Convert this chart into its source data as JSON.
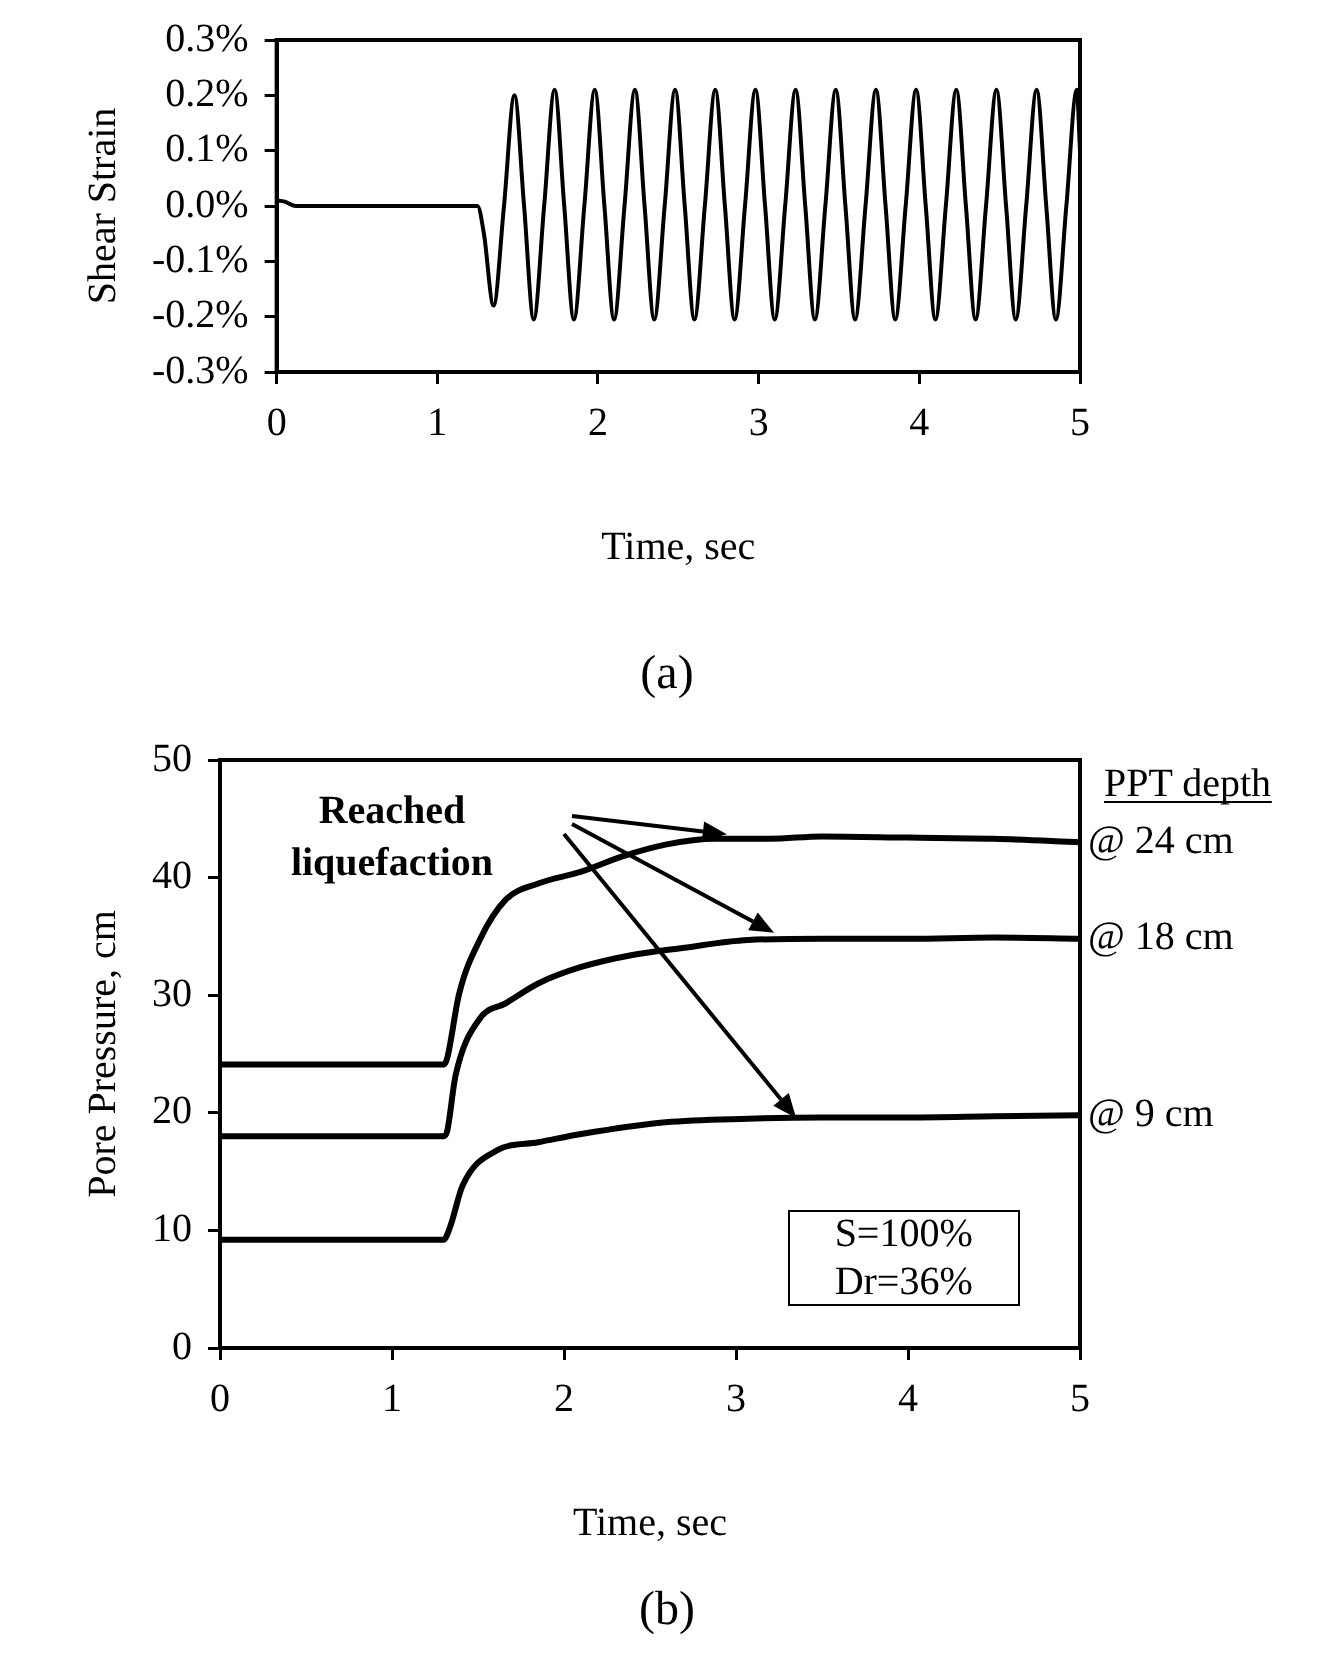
{
  "chart_data": [
    {
      "type": "line",
      "xlabel": "Time, sec",
      "ylabel": "Shear Strain",
      "annotations": [
        "(a)"
      ],
      "marker": "none",
      "line_style": "solid",
      "grid": false,
      "xlim": [
        0,
        5
      ],
      "xticks": [
        0,
        1,
        2,
        3,
        4,
        5
      ],
      "ylim": [
        -0.3,
        0.3
      ],
      "yticks": [
        {
          "value": -0.3,
          "label": "-0.3%"
        },
        {
          "value": -0.2,
          "label": "-0.2%"
        },
        {
          "value": -0.1,
          "label": "-0.1%"
        },
        {
          "value": 0,
          "label": "0.0%"
        },
        {
          "value": 0.1,
          "label": "0.1%"
        },
        {
          "value": 0.2,
          "label": "0.2%"
        },
        {
          "value": 0.3,
          "label": "0.3%"
        }
      ],
      "series": [
        {
          "color": "#000000",
          "x": [
            0,
            0.05,
            0.12,
            1.25,
            1.29,
            1.35,
            1.415,
            1.48,
            1.54,
            1.6,
            1.665,
            1.73,
            1.79,
            1.85,
            1.915,
            1.98,
            2.04,
            2.1,
            2.165,
            2.23,
            2.29,
            2.35,
            2.415,
            2.48,
            2.54,
            2.6,
            2.665,
            2.73,
            2.79,
            2.85,
            2.915,
            2.98,
            3.04,
            3.1,
            3.165,
            3.23,
            3.29,
            3.35,
            3.415,
            3.48,
            3.54,
            3.6,
            3.665,
            3.73,
            3.79,
            3.85,
            3.915,
            3.98,
            4.04,
            4.1,
            4.165,
            4.23,
            4.29,
            4.35,
            4.415,
            4.48,
            4.54,
            4.6,
            4.665,
            4.73,
            4.79,
            4.85,
            4.915,
            4.98,
            5.0
          ],
          "values": [
            0.01,
            0.008,
            0,
            0,
            -0.05,
            -0.18,
            0,
            0.2,
            0,
            -0.205,
            0,
            0.21,
            0,
            -0.205,
            0,
            0.21,
            0,
            -0.205,
            0,
            0.21,
            0,
            -0.205,
            0,
            0.21,
            0,
            -0.205,
            0,
            0.21,
            0,
            -0.205,
            0,
            0.21,
            0,
            -0.205,
            0,
            0.21,
            0,
            -0.205,
            0,
            0.21,
            0,
            -0.205,
            0,
            0.21,
            0,
            -0.205,
            0,
            0.21,
            0,
            -0.205,
            0,
            0.21,
            0,
            -0.205,
            0,
            0.21,
            0,
            -0.205,
            0,
            0.21,
            0,
            -0.205,
            0,
            0.21,
            0.1
          ]
        }
      ]
    },
    {
      "type": "line",
      "xlabel": "Time, sec",
      "ylabel": "Pore Pressure, cm",
      "legend_title": "PPT depth",
      "annotations": [
        "Reached liquefaction",
        "S=100%\nDr=36%",
        "(b)"
      ],
      "marker": "none",
      "line_style": "solid",
      "grid": false,
      "xlim": [
        0,
        5
      ],
      "xticks": [
        0,
        1,
        2,
        3,
        4,
        5
      ],
      "ylim": [
        0,
        50
      ],
      "yticks": [
        0,
        10,
        20,
        30,
        40,
        50
      ],
      "series": [
        {
          "name": "@ 24 cm",
          "color": "#000000",
          "x": [
            0,
            0.5,
            1.0,
            1.3,
            1.32,
            1.39,
            1.51,
            1.66,
            1.85,
            2.1,
            2.34,
            2.59,
            2.88,
            3.2,
            3.5,
            4.0,
            4.5,
            5.0
          ],
          "values": [
            24.1,
            24.1,
            24.1,
            24.1,
            24.6,
            30.1,
            34.7,
            38.1,
            39.5,
            40.5,
            41.8,
            42.8,
            43.3,
            43.3,
            43.5,
            43.4,
            43.3,
            43.0
          ]
        },
        {
          "name": "@ 18 cm",
          "color": "#000000",
          "x": [
            0,
            0.5,
            1.0,
            1.3,
            1.32,
            1.37,
            1.51,
            1.66,
            1.85,
            2.1,
            2.39,
            2.68,
            3.07,
            3.5,
            4.0,
            4.5,
            5.0
          ],
          "values": [
            18.0,
            18.0,
            18.0,
            18.0,
            18.4,
            23.2,
            28.0,
            29.3,
            31.0,
            32.4,
            33.4,
            34.0,
            34.7,
            34.8,
            34.8,
            34.9,
            34.8
          ]
        },
        {
          "name": "@ 9 cm",
          "color": "#000000",
          "x": [
            0,
            0.5,
            1.0,
            1.3,
            1.34,
            1.41,
            1.61,
            1.85,
            2.1,
            2.59,
            3.07,
            3.5,
            4.0,
            4.5,
            5.0
          ],
          "values": [
            9.2,
            9.2,
            9.2,
            9.2,
            10.4,
            13.8,
            16.8,
            17.5,
            18.2,
            19.2,
            19.5,
            19.6,
            19.6,
            19.7,
            19.8
          ]
        }
      ]
    }
  ]
}
